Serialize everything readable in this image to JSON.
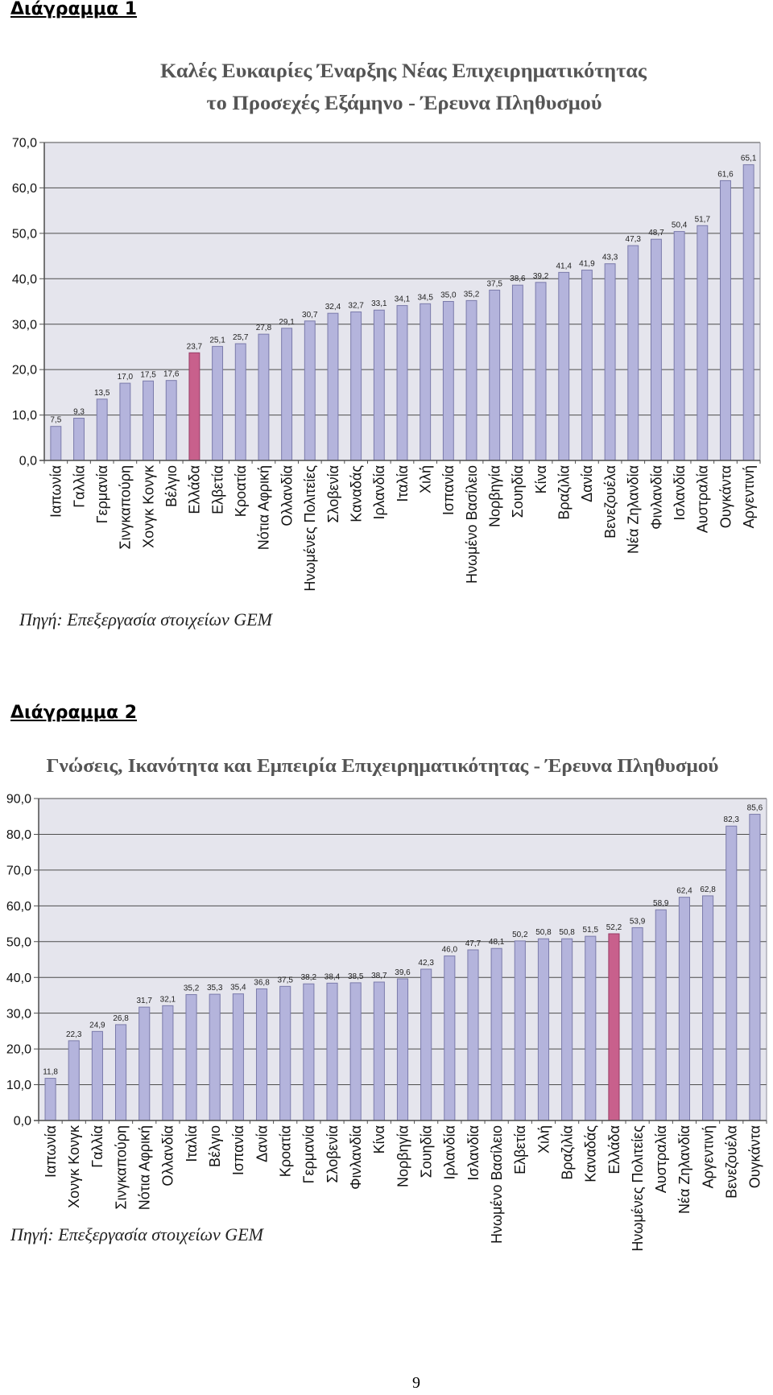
{
  "document": {
    "figures": [
      {
        "heading": "Διάγραμμα 1",
        "source": "Πηγή: Επεξεργασία στοιχείων GEM"
      },
      {
        "heading": "Διάγραμμα 2",
        "source": "Πηγή: Επεξεργασία στοιχείων GEM"
      }
    ],
    "page_number": "9"
  },
  "colors": {
    "bar": "#b4b4dc",
    "bar_stroke": "#7b7bab",
    "highlight": "#c8608c",
    "highlight_stroke": "#983c66",
    "plot_background": "#e5e5ed",
    "grid": "#4d4d4d",
    "frame": "#8c8c98",
    "title": "#555555"
  },
  "chart_data": [
    {
      "type": "bar",
      "title_lines": [
        "Καλές Ευκαιρίες Έναρξης Νέας Επιχειρηματικότητας",
        "το Προσεχές Εξάμηνο - Έρευνα Πληθυσμού"
      ],
      "categories": [
        "Ιαπωνία",
        "Γαλλία",
        "Γερμανία",
        "Σινγκαπούρη",
        "Χονγκ Κονγκ",
        "Βέλγιο",
        "Ελλάδα",
        "Ελβετία",
        "Κροατία",
        "Νότια Αφρική",
        "Ολλανδία",
        "Ηνωμένες Πολιτείες",
        "Σλοβενία",
        "Καναδάς",
        "Ιρλανδία",
        "Ιταλία",
        "Χιλή",
        "Ισπανία",
        "Ηνωμένο Βασίλειο",
        "Νορβηγία",
        "Σουηδία",
        "Κίνα",
        "Βραζιλία",
        "Δανία",
        "Βενεζουέλα",
        "Νέα Ζηλανδία",
        "Φινλανδία",
        "Ισλανδία",
        "Αυστραλία",
        "Ουγκάντα",
        "Αργεντινή"
      ],
      "values": [
        7.5,
        9.3,
        13.5,
        17.0,
        17.5,
        17.6,
        23.7,
        25.1,
        25.7,
        27.8,
        29.1,
        30.7,
        32.4,
        32.7,
        33.1,
        34.1,
        34.5,
        35.0,
        35.2,
        37.5,
        38.6,
        39.2,
        41.4,
        41.9,
        43.3,
        47.3,
        48.7,
        50.4,
        51.7,
        61.6,
        65.1
      ],
      "highlight_index": 6,
      "ylim": [
        0,
        70
      ],
      "yticks": [
        0,
        10,
        20,
        30,
        40,
        50,
        60,
        70
      ],
      "grid": true,
      "data_labels": true
    },
    {
      "type": "bar",
      "title_lines": [
        "Γνώσεις, Ικανότητα και Εμπειρία Επιχειρηματικότητας - Έρευνα Πληθυσμού"
      ],
      "categories": [
        "Ιαπωνία",
        "Χονγκ Κονγκ",
        "Γαλλία",
        "Σινγκαπούρη",
        "Νότια Αφρική",
        "Ολλανδία",
        "Ιταλία",
        "Βέλγιο",
        "Ισπανία",
        "Δανία",
        "Κροατία",
        "Γερμανία",
        "Σλοβενία",
        "Φινλανδία",
        "Κίνα",
        "Νορβηγία",
        "Σουηδία",
        "Ιρλανδία",
        "Ισλανδία",
        "Ηνωμένο Βασίλειο",
        "Ελβετία",
        "Χιλή",
        "Βραζιλία",
        "Καναδάς",
        "Ελλάδα",
        "Ηνωμένες Πολιτείες",
        "Αυστραλία",
        "Νέα Ζηλανδία",
        "Αργεντινή",
        "Βενεζουέλα",
        "Ουγκάντα"
      ],
      "values": [
        11.8,
        22.3,
        24.9,
        26.8,
        31.7,
        32.1,
        35.2,
        35.3,
        35.4,
        36.8,
        37.5,
        38.2,
        38.4,
        38.5,
        38.7,
        39.6,
        42.3,
        46.0,
        47.7,
        48.1,
        50.2,
        50.8,
        50.8,
        51.5,
        52.2,
        53.9,
        58.9,
        62.4,
        62.8,
        82.3,
        85.6
      ],
      "highlight_index": 24,
      "ylim": [
        0,
        90
      ],
      "yticks": [
        0,
        10,
        20,
        30,
        40,
        50,
        60,
        70,
        80,
        90
      ],
      "grid": true,
      "data_labels": true
    }
  ]
}
